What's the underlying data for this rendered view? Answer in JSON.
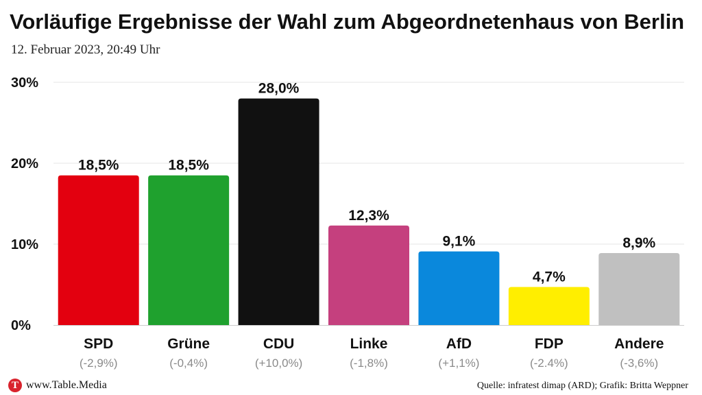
{
  "header": {
    "title": "Vorläufige Ergebnisse der Wahl zum Abgeordnetenhaus von Berlin",
    "subtitle": "12. Februar 2023, 20:49 Uhr"
  },
  "footer": {
    "logo_letter": "T",
    "site": "www.Table.Media",
    "source": "Quelle: infratest dimap (ARD); Grafik: Britta Weppner"
  },
  "chart_data": {
    "type": "bar",
    "categories": [
      "SPD",
      "Grüne",
      "CDU",
      "Linke",
      "AfD",
      "FDP",
      "Andere"
    ],
    "values": [
      18.5,
      18.5,
      28.0,
      12.3,
      9.1,
      4.7,
      8.9
    ],
    "value_labels": [
      "18,5%",
      "18,5%",
      "28,0%",
      "12,3%",
      "9,1%",
      "4,7%",
      "8,9%"
    ],
    "changes": [
      "(-2,9%)",
      "(-0,4%)",
      "(+10,0%)",
      "(-1,8%)",
      "(+1,1%)",
      "(-2.4%)",
      "(-3,6%)"
    ],
    "colors": [
      "#e3000f",
      "#1fa12e",
      "#111111",
      "#c5407e",
      "#0a88dc",
      "#ffee00",
      "#c0c0c0"
    ],
    "yticks": [
      0,
      10,
      20,
      30
    ],
    "ytick_labels": [
      "0%",
      "10%",
      "20%",
      "30%"
    ],
    "ylim": [
      0,
      30
    ],
    "grid": true,
    "legend": "none"
  }
}
